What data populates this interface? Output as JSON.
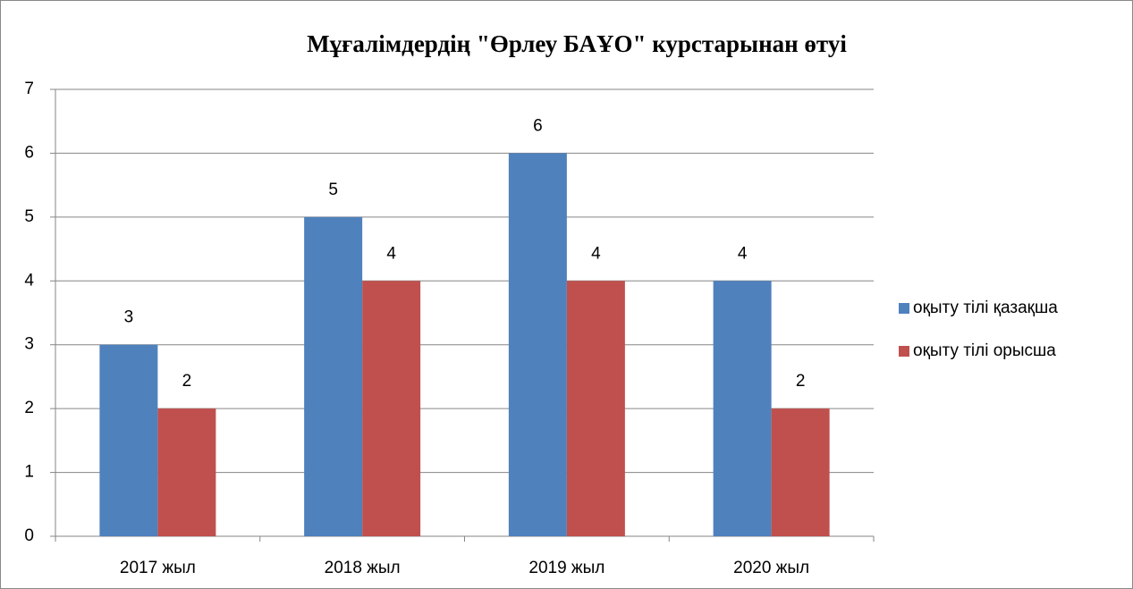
{
  "chart_data": {
    "type": "bar",
    "title": "Мұғалімдердің \"Өрлеу БАҰО\" курстарынан өтуі",
    "categories": [
      "2017 жыл",
      "2018 жыл",
      "2019 жыл",
      "2020 жыл"
    ],
    "series": [
      {
        "name": "оқыту тілі қазақша",
        "color": "#4f81bd",
        "values": [
          3,
          5,
          6,
          4
        ]
      },
      {
        "name": "оқыту тілі орысша",
        "color": "#c0504d",
        "values": [
          2,
          4,
          4,
          2
        ]
      }
    ],
    "ylim": [
      0,
      7
    ],
    "yticks": [
      0,
      1,
      2,
      3,
      4,
      5,
      6,
      7
    ],
    "grid": true,
    "legend": "right"
  }
}
